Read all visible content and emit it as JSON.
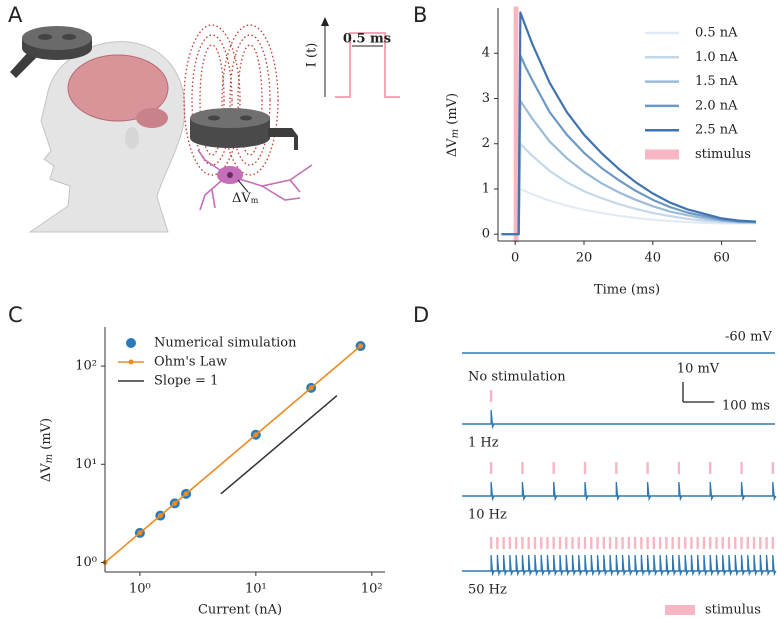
{
  "illustration": {
    "label": "A",
    "current_label": "I (t)",
    "pulse_label": "0.5 ms",
    "potential_label": [
      "ΔV",
      "m"
    ]
  },
  "chart_data": [
    {
      "type": "line",
      "label": "B",
      "xlabel": "Time (ms)",
      "ylabel": [
        "ΔV",
        "m",
        " (mV)"
      ],
      "x": [
        -4,
        -1,
        0,
        1,
        1.5,
        3,
        5,
        10,
        15,
        20,
        25,
        30,
        35,
        40,
        45,
        50,
        55,
        60,
        65,
        70
      ],
      "series": [
        {
          "name": "0.5 nA",
          "color": "#e2ebf5",
          "values": [
            0,
            0,
            0,
            0,
            1.0,
            0.95,
            0.88,
            0.74,
            0.63,
            0.54,
            0.47,
            0.41,
            0.36,
            0.32,
            0.29,
            0.27,
            0.25,
            0.24,
            0.24,
            0.24
          ]
        },
        {
          "name": "1.0 nA",
          "color": "#c4d8ea",
          "values": [
            0,
            0,
            0,
            0,
            2.0,
            1.88,
            1.73,
            1.4,
            1.15,
            0.95,
            0.8,
            0.67,
            0.56,
            0.47,
            0.4,
            0.34,
            0.3,
            0.27,
            0.25,
            0.25
          ]
        },
        {
          "name": "1.5 nA",
          "color": "#9bbbd9",
          "values": [
            0,
            0,
            0,
            0,
            2.95,
            2.78,
            2.55,
            2.05,
            1.68,
            1.38,
            1.13,
            0.93,
            0.76,
            0.62,
            0.5,
            0.42,
            0.35,
            0.3,
            0.27,
            0.26
          ]
        },
        {
          "name": "2.0 nA",
          "color": "#6e99c5",
          "values": [
            0,
            0,
            0,
            0,
            3.95,
            3.7,
            3.4,
            2.7,
            2.2,
            1.8,
            1.47,
            1.2,
            0.96,
            0.76,
            0.6,
            0.48,
            0.4,
            0.32,
            0.28,
            0.27
          ]
        },
        {
          "name": "2.5 nA",
          "color": "#3f74b0",
          "values": [
            0,
            0,
            0,
            0,
            4.9,
            4.6,
            4.2,
            3.35,
            2.7,
            2.2,
            1.8,
            1.45,
            1.15,
            0.9,
            0.7,
            0.55,
            0.45,
            0.35,
            0.3,
            0.28
          ]
        }
      ],
      "stimulus": {
        "name": "stimulus",
        "color": "#f7b6c2",
        "x": [
          0,
          0.5
        ]
      },
      "xlim": [
        -5,
        70
      ],
      "xticks": [
        0,
        20,
        40,
        60
      ],
      "ylim": [
        -0.15,
        5.0
      ],
      "yticks": [
        0,
        1,
        2,
        3,
        4
      ],
      "legend": "upper right"
    },
    {
      "type": "scatter",
      "label": "C",
      "xlabel": "Current (nA)",
      "ylabel": [
        "ΔV",
        "m",
        " (mV)"
      ],
      "xscale": "log",
      "yscale": "log",
      "xlim": [
        0.5,
        130
      ],
      "xticks": [
        {
          "value": 1,
          "label": "10⁰"
        },
        {
          "value": 10,
          "label": "10¹"
        },
        {
          "value": 100,
          "label": "10²"
        }
      ],
      "ylim": [
        0.8,
        250
      ],
      "yticks": [
        {
          "value": 1,
          "label": "10⁰"
        },
        {
          "value": 10,
          "label": "10¹"
        },
        {
          "value": 100,
          "label": "10²"
        }
      ],
      "series": [
        {
          "name": "Numerical simulation",
          "color": "#2b7bba",
          "style": "markers",
          "x": [
            1,
            1.5,
            2,
            2.5,
            10,
            30,
            80
          ],
          "values": [
            2,
            3,
            4,
            5,
            20,
            60,
            160
          ]
        },
        {
          "name": "Ohm's Law",
          "color": "#ee8a22",
          "style": "line-markers",
          "x": [
            0.5,
            1,
            1.5,
            2,
            2.5,
            10,
            30,
            80
          ],
          "values": [
            1,
            2,
            3,
            4,
            5,
            20,
            60,
            160
          ]
        },
        {
          "name": "Slope = 1",
          "color": "#333333",
          "style": "line",
          "x": [
            5,
            50
          ],
          "values": [
            5,
            50
          ]
        }
      ],
      "legend": "upper left"
    },
    {
      "type": "trace",
      "label": "D",
      "xlim": [
        0,
        1000
      ],
      "baseline": {
        "value": -60,
        "label": "-60 mV"
      },
      "color": "#2f78b4",
      "traces": [
        {
          "name": "No stimulation",
          "stim_times": []
        },
        {
          "name": "1 Hz",
          "stim_times": [
            93
          ],
          "spike_height": 7
        },
        {
          "name": "10 Hz",
          "stim_times": [
            93,
            193,
            293,
            393,
            493,
            593,
            693,
            793,
            893,
            993
          ],
          "spike_height": 7
        },
        {
          "name": "50 Hz",
          "stim_times": [
            93,
            113,
            133,
            153,
            173,
            193,
            213,
            233,
            253,
            273,
            293,
            313,
            333,
            353,
            373,
            393,
            413,
            433,
            453,
            473,
            493,
            513,
            533,
            553,
            573,
            593,
            613,
            633,
            653,
            673,
            693,
            713,
            733,
            753,
            773,
            793,
            813,
            833,
            853,
            873,
            893,
            913,
            933,
            953,
            973,
            993
          ],
          "spike_height": 8
        }
      ],
      "scalebar": {
        "y": {
          "value": 10,
          "label": "10 mV"
        },
        "x": {
          "value": 100,
          "label": "100 ms"
        }
      },
      "stimulus": {
        "name": "stimulus",
        "color": "#f7b6c2"
      }
    }
  ]
}
